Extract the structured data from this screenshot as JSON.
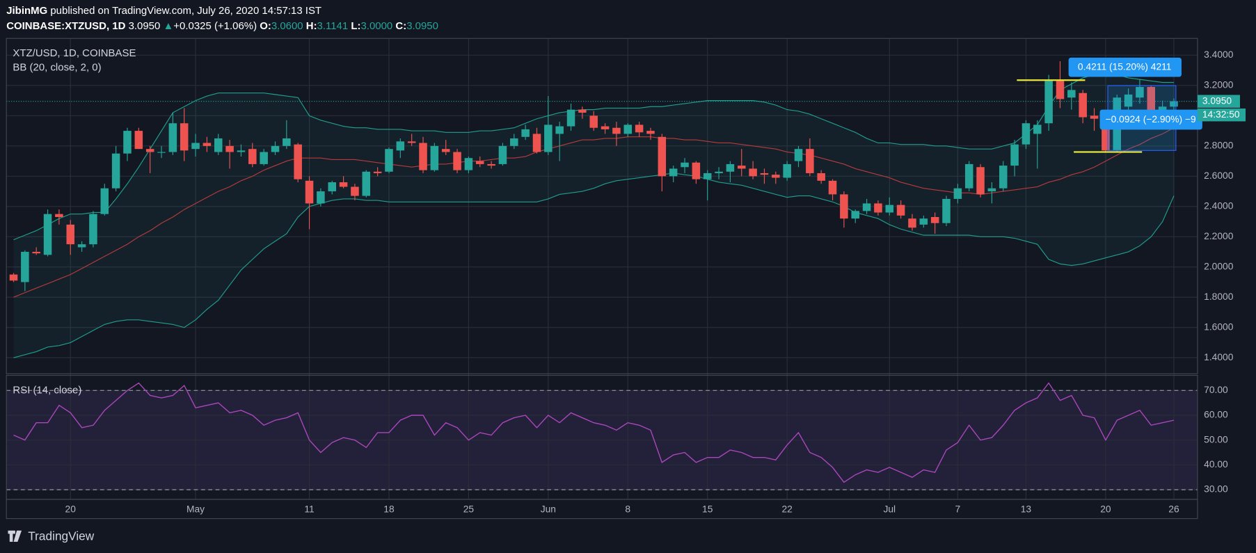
{
  "header": {
    "publisher": "JibinMG",
    "published": "published on TradingView.com, July 26, 2020 14:57:13 IST",
    "symbol": "COINBASE:XTZUSD, 1D",
    "price": "3.0950",
    "arrow": "▲",
    "change": "+0.0325 (+1.06%)",
    "ohlc": [
      {
        "label": "O:",
        "value": "3.0600"
      },
      {
        "label": "H:",
        "value": "3.1141"
      },
      {
        "label": "L:",
        "value": "3.0000"
      },
      {
        "label": "C:",
        "value": "3.0950"
      }
    ]
  },
  "chart_data": [
    {
      "type": "candlestick",
      "title": "XTZ/USD, 1D, COINBASE",
      "indicator": "BB (20, close, 2, 0)",
      "up_color": "#26a69a",
      "down_color": "#ef5350",
      "bb_band_color": "#1f9e8f",
      "bb_basis_color": "#b83b3b",
      "bb_fill": "#26a69a",
      "open": [
        1.95,
        1.9,
        2.1,
        2.08,
        2.35,
        2.28,
        2.13,
        2.15,
        2.35,
        2.52,
        2.75,
        2.9,
        2.78,
        2.76,
        2.76,
        2.95,
        2.78,
        2.82,
        2.76,
        2.8,
        2.76,
        2.78,
        2.68,
        2.76,
        2.8,
        2.81,
        2.57,
        2.42,
        2.5,
        2.56,
        2.53,
        2.47,
        2.63,
        2.63,
        2.77,
        2.83,
        2.82,
        2.64,
        2.78,
        2.76,
        2.64,
        2.7,
        2.68,
        2.68,
        2.8,
        2.86,
        2.88,
        2.76,
        2.88,
        2.93,
        3.04,
        3.0,
        2.93,
        2.92,
        2.88,
        2.94,
        2.9,
        2.86,
        2.6,
        2.66,
        2.69,
        2.58,
        2.62,
        2.63,
        2.67,
        2.65,
        2.62,
        2.61,
        2.59,
        2.7,
        2.78,
        2.62,
        2.57,
        2.48,
        2.32,
        2.37,
        2.42,
        2.36,
        2.41,
        2.32,
        2.28,
        2.33,
        2.29,
        2.45,
        2.52,
        2.66,
        2.5,
        2.52,
        2.67,
        2.81,
        2.88,
        2.95,
        3.23,
        3.12,
        3.15,
        3.0,
        2.96,
        2.77,
        3.06,
        3.12,
        3.19,
        3.03,
        3.06
      ],
      "high": [
        1.96,
        2.11,
        2.13,
        2.38,
        2.38,
        2.31,
        2.17,
        2.37,
        2.55,
        2.8,
        2.92,
        2.92,
        2.8,
        2.8,
        3.02,
        3.05,
        2.88,
        2.86,
        2.88,
        2.84,
        2.81,
        2.82,
        2.78,
        2.83,
        2.97,
        2.82,
        2.6,
        2.52,
        2.57,
        2.6,
        2.55,
        2.64,
        2.66,
        2.79,
        2.85,
        2.88,
        2.86,
        2.82,
        2.84,
        2.78,
        2.73,
        2.73,
        2.7,
        2.82,
        2.88,
        2.94,
        2.92,
        3.13,
        2.96,
        3.08,
        3.06,
        3.03,
        2.95,
        2.96,
        2.95,
        2.96,
        2.92,
        2.88,
        2.67,
        2.72,
        2.7,
        2.64,
        2.66,
        2.7,
        2.78,
        2.7,
        2.65,
        2.63,
        2.7,
        2.8,
        2.85,
        2.64,
        2.58,
        2.5,
        2.38,
        2.45,
        2.44,
        2.46,
        2.44,
        2.35,
        2.34,
        2.36,
        2.47,
        2.55,
        2.7,
        2.68,
        2.56,
        2.7,
        2.84,
        2.97,
        2.97,
        3.27,
        3.36,
        3.22,
        3.17,
        3.05,
        3.0,
        3.14,
        3.18,
        3.24,
        3.2,
        3.1,
        3.1141
      ],
      "low": [
        1.9,
        1.84,
        2.08,
        2.07,
        2.28,
        2.08,
        2.1,
        2.13,
        2.34,
        2.5,
        2.7,
        2.78,
        2.62,
        2.72,
        2.74,
        2.7,
        2.73,
        2.76,
        2.74,
        2.65,
        2.73,
        2.66,
        2.67,
        2.74,
        2.78,
        2.56,
        2.25,
        2.4,
        2.48,
        2.52,
        2.44,
        2.46,
        2.6,
        2.62,
        2.72,
        2.8,
        2.62,
        2.63,
        2.74,
        2.62,
        2.62,
        2.66,
        2.65,
        2.67,
        2.78,
        2.84,
        2.75,
        2.74,
        2.7,
        2.9,
        2.98,
        2.9,
        2.88,
        2.8,
        2.86,
        2.86,
        2.84,
        2.5,
        2.56,
        2.62,
        2.55,
        2.44,
        2.58,
        2.56,
        2.6,
        2.58,
        2.55,
        2.55,
        2.57,
        2.66,
        2.6,
        2.55,
        2.44,
        2.26,
        2.29,
        2.35,
        2.34,
        2.34,
        2.32,
        2.24,
        2.26,
        2.22,
        2.27,
        2.42,
        2.5,
        2.46,
        2.42,
        2.5,
        2.6,
        2.78,
        2.65,
        2.9,
        3.05,
        3.04,
        2.95,
        2.9,
        2.76,
        2.76,
        3.0,
        3.08,
        3.0,
        3.0,
        3.0
      ],
      "close": [
        1.91,
        2.1,
        2.09,
        2.35,
        2.33,
        2.15,
        2.15,
        2.35,
        2.52,
        2.75,
        2.9,
        2.78,
        2.76,
        2.76,
        2.95,
        2.77,
        2.82,
        2.8,
        2.85,
        2.76,
        2.77,
        2.68,
        2.76,
        2.8,
        2.85,
        2.58,
        2.42,
        2.5,
        2.56,
        2.53,
        2.47,
        2.63,
        2.62,
        2.78,
        2.83,
        2.82,
        2.64,
        2.8,
        2.76,
        2.64,
        2.72,
        2.68,
        2.67,
        2.8,
        2.85,
        2.91,
        2.76,
        2.94,
        2.93,
        3.04,
        3.02,
        2.92,
        2.91,
        2.88,
        2.94,
        2.89,
        2.88,
        2.6,
        2.65,
        2.69,
        2.58,
        2.62,
        2.63,
        2.68,
        2.65,
        2.6,
        2.61,
        2.59,
        2.68,
        2.78,
        2.62,
        2.57,
        2.48,
        2.32,
        2.37,
        2.42,
        2.36,
        2.41,
        2.34,
        2.26,
        2.32,
        2.29,
        2.45,
        2.52,
        2.68,
        2.48,
        2.52,
        2.67,
        2.81,
        2.95,
        2.94,
        3.23,
        3.11,
        3.17,
        2.99,
        2.98,
        2.77,
        3.12,
        3.14,
        3.19,
        3.03,
        3.06,
        3.095
      ],
      "bb_upper": [
        2.18,
        2.21,
        2.24,
        2.28,
        2.32,
        2.35,
        2.35,
        2.36,
        2.36,
        2.45,
        2.55,
        2.66,
        2.78,
        2.9,
        3.02,
        3.06,
        3.1,
        3.13,
        3.15,
        3.15,
        3.15,
        3.15,
        3.15,
        3.14,
        3.13,
        3.12,
        3.0,
        2.97,
        2.95,
        2.93,
        2.92,
        2.92,
        2.91,
        2.91,
        2.91,
        2.9,
        2.9,
        2.9,
        2.89,
        2.89,
        2.89,
        2.9,
        2.9,
        2.91,
        2.92,
        2.95,
        2.98,
        3.0,
        3.02,
        3.03,
        3.04,
        3.04,
        3.05,
        3.05,
        3.05,
        3.05,
        3.06,
        3.06,
        3.07,
        3.08,
        3.09,
        3.1,
        3.1,
        3.1,
        3.1,
        3.1,
        3.09,
        3.07,
        3.04,
        3.03,
        3.01,
        2.98,
        2.95,
        2.92,
        2.89,
        2.85,
        2.82,
        2.82,
        2.81,
        2.81,
        2.81,
        2.8,
        2.8,
        2.79,
        2.78,
        2.78,
        2.78,
        2.8,
        2.82,
        2.88,
        2.94,
        3.06,
        3.17,
        3.21,
        3.25,
        3.27,
        3.28,
        3.27,
        3.25,
        3.24,
        3.23,
        3.22,
        3.22
      ],
      "bb_basis": [
        1.8,
        1.83,
        1.86,
        1.89,
        1.92,
        1.95,
        1.99,
        2.03,
        2.07,
        2.11,
        2.15,
        2.2,
        2.24,
        2.29,
        2.33,
        2.38,
        2.42,
        2.46,
        2.5,
        2.53,
        2.57,
        2.6,
        2.64,
        2.67,
        2.7,
        2.72,
        2.72,
        2.72,
        2.71,
        2.71,
        2.71,
        2.7,
        2.69,
        2.68,
        2.67,
        2.66,
        2.67,
        2.68,
        2.68,
        2.69,
        2.7,
        2.7,
        2.71,
        2.72,
        2.72,
        2.73,
        2.76,
        2.78,
        2.8,
        2.82,
        2.84,
        2.84,
        2.85,
        2.85,
        2.86,
        2.86,
        2.86,
        2.85,
        2.85,
        2.84,
        2.84,
        2.83,
        2.82,
        2.82,
        2.81,
        2.8,
        2.79,
        2.78,
        2.76,
        2.75,
        2.74,
        2.72,
        2.7,
        2.68,
        2.65,
        2.63,
        2.61,
        2.59,
        2.56,
        2.54,
        2.52,
        2.51,
        2.5,
        2.49,
        2.49,
        2.48,
        2.49,
        2.5,
        2.51,
        2.52,
        2.53,
        2.56,
        2.58,
        2.61,
        2.63,
        2.66,
        2.7,
        2.74,
        2.78,
        2.81,
        2.85,
        2.88,
        2.92
      ],
      "bb_lower": [
        1.4,
        1.42,
        1.44,
        1.47,
        1.48,
        1.5,
        1.54,
        1.58,
        1.62,
        1.64,
        1.65,
        1.65,
        1.64,
        1.63,
        1.62,
        1.6,
        1.65,
        1.72,
        1.78,
        1.88,
        1.98,
        2.05,
        2.12,
        2.17,
        2.22,
        2.33,
        2.4,
        2.42,
        2.44,
        2.45,
        2.45,
        2.44,
        2.44,
        2.43,
        2.43,
        2.43,
        2.43,
        2.43,
        2.43,
        2.43,
        2.43,
        2.43,
        2.43,
        2.43,
        2.43,
        2.43,
        2.43,
        2.45,
        2.48,
        2.49,
        2.5,
        2.52,
        2.55,
        2.57,
        2.58,
        2.59,
        2.6,
        2.61,
        2.62,
        2.61,
        2.6,
        2.58,
        2.56,
        2.55,
        2.54,
        2.52,
        2.5,
        2.48,
        2.46,
        2.47,
        2.47,
        2.45,
        2.43,
        2.4,
        2.36,
        2.34,
        2.32,
        2.28,
        2.25,
        2.23,
        2.21,
        2.21,
        2.21,
        2.21,
        2.21,
        2.2,
        2.2,
        2.2,
        2.19,
        2.17,
        2.15,
        2.05,
        2.02,
        2.01,
        2.02,
        2.04,
        2.06,
        2.08,
        2.1,
        2.14,
        2.2,
        2.3,
        2.47
      ],
      "xlim": [
        -0.63,
        104.08
      ],
      "ylim": [
        1.294,
        3.511
      ],
      "xticks": [
        {
          "value": 5,
          "label": "20"
        },
        {
          "value": 16,
          "label": "May"
        },
        {
          "value": 26,
          "label": "11"
        },
        {
          "value": 33,
          "label": "18"
        },
        {
          "value": 40,
          "label": "25"
        },
        {
          "value": 47,
          "label": "Jun"
        },
        {
          "value": 54,
          "label": "8"
        },
        {
          "value": 61,
          "label": "15"
        },
        {
          "value": 68,
          "label": "22"
        },
        {
          "value": 77,
          "label": "Jul"
        },
        {
          "value": 83,
          "label": "7"
        },
        {
          "value": 89,
          "label": "13"
        },
        {
          "value": 96,
          "label": "20"
        },
        {
          "value": 102,
          "label": "26"
        }
      ],
      "yticks": [
        {
          "value": 3.4,
          "label": "3.4000"
        },
        {
          "value": 3.2,
          "label": "3.2000"
        },
        {
          "value": 3.0,
          "label": "3.0000"
        },
        {
          "value": 2.8,
          "label": "2.8000"
        },
        {
          "value": 2.6,
          "label": "2.6000"
        },
        {
          "value": 2.4,
          "label": "2.4000"
        },
        {
          "value": 2.2,
          "label": "2.2000"
        },
        {
          "value": 2.0,
          "label": "2.0000"
        },
        {
          "value": 1.8,
          "label": "1.8000"
        },
        {
          "value": 1.6,
          "label": "1.6000"
        },
        {
          "value": 1.4,
          "label": "1.4000"
        }
      ],
      "grid": true,
      "last_price": {
        "value": 3.095,
        "label": "3.0950"
      },
      "countdown": "14:32:50",
      "levels": [
        {
          "value": 3.235,
          "from": 88.2,
          "to": 94.2,
          "color": "#e8e83a"
        },
        {
          "value": 2.76,
          "from": 93.2,
          "to": 99.2,
          "color": "#e8e83a"
        }
      ],
      "measures": [
        "0.4211 (15.20%) 4211",
        "−0.0924 (−2.90%) −9"
      ]
    },
    {
      "type": "line",
      "title": "RSI (14, close)",
      "color": "#ab47bc",
      "band": [
        30,
        70
      ],
      "band_color": "#7e57c2",
      "values": [
        52,
        50,
        57,
        57,
        64,
        61,
        55,
        56,
        62,
        66,
        70,
        73,
        68,
        67,
        68,
        72,
        63,
        64,
        65,
        61,
        62,
        60,
        56,
        58,
        59,
        61,
        50,
        45,
        49,
        51,
        50,
        47,
        53,
        53,
        58,
        60,
        60,
        52,
        57,
        55,
        50,
        53,
        52,
        57,
        59,
        60,
        55,
        60,
        57,
        61,
        59,
        57,
        56,
        54,
        57,
        56,
        54,
        41,
        44,
        45,
        41,
        43,
        43,
        46,
        45,
        43,
        43,
        42,
        48,
        53,
        45,
        43,
        39,
        33,
        36,
        38,
        37,
        39,
        37,
        35,
        38,
        37,
        46,
        49,
        56,
        50,
        51,
        56,
        62,
        65,
        67,
        73,
        66,
        68,
        60,
        59,
        50,
        58,
        60,
        62,
        56,
        57,
        58
      ],
      "ylim": [
        26.1,
        76.1
      ],
      "yticks": [
        {
          "value": 70,
          "label": "70.00"
        },
        {
          "value": 60,
          "label": "60.00"
        },
        {
          "value": 50,
          "label": "50.00"
        },
        {
          "value": 40,
          "label": "40.00"
        },
        {
          "value": 30,
          "label": "30.00"
        }
      ]
    }
  ],
  "footer": {
    "brand": "TradingView"
  }
}
